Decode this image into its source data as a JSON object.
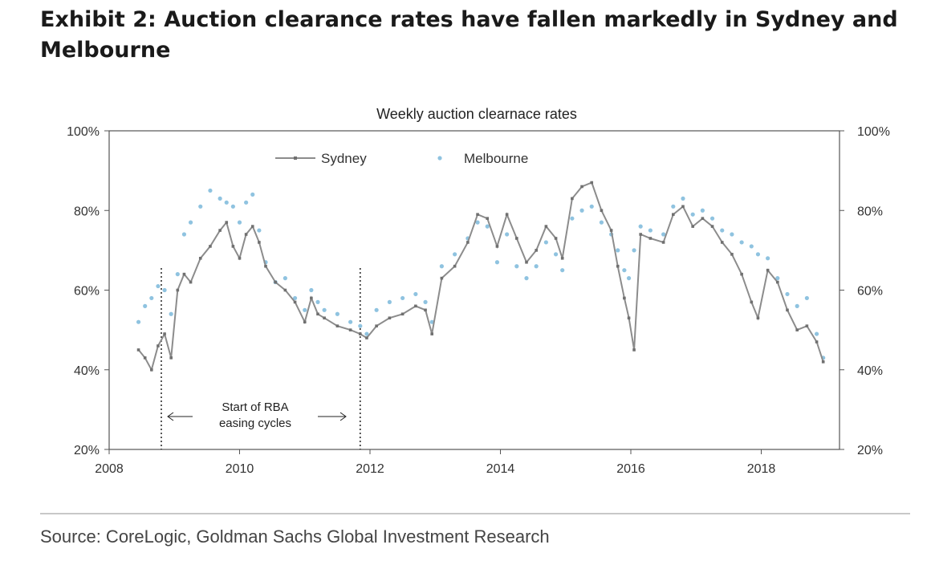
{
  "exhibit": {
    "title": "Exhibit 2: Auction clearance rates have fallen markedly in Sydney and Melbourne",
    "source": "Source: CoreLogic, Goldman Sachs Global Investment Research"
  },
  "chart_data": {
    "type": "line",
    "title": "Weekly auction clearnace rates",
    "xlabel": "",
    "ylabel": "",
    "xlim": [
      2008,
      2019.2
    ],
    "ylim": [
      20,
      100
    ],
    "x_ticks": [
      "2008",
      "2010",
      "2012",
      "2014",
      "2016",
      "2018"
    ],
    "y_ticks_left": [
      "20%",
      "40%",
      "60%",
      "80%",
      "100%"
    ],
    "y_ticks_right": [
      "20%",
      "40%",
      "60%",
      "80%",
      "100%"
    ],
    "grid": false,
    "legend_position": "top-left",
    "colors": {
      "sydney": "#8c8c8c",
      "melbourne": "#8fc3e0",
      "axis": "#555555"
    },
    "annotation": {
      "lines": [
        "Start of RBA",
        "easing cycles"
      ],
      "x": [
        2008.8,
        2011.85
      ]
    },
    "series": [
      {
        "name": "Sydney",
        "style": "line-with-markers",
        "points": [
          [
            2008.45,
            45
          ],
          [
            2008.55,
            43
          ],
          [
            2008.65,
            40
          ],
          [
            2008.75,
            46
          ],
          [
            2008.85,
            49
          ],
          [
            2008.95,
            43
          ],
          [
            2009.05,
            60
          ],
          [
            2009.15,
            64
          ],
          [
            2009.25,
            62
          ],
          [
            2009.4,
            68
          ],
          [
            2009.55,
            71
          ],
          [
            2009.7,
            75
          ],
          [
            2009.8,
            77
          ],
          [
            2009.9,
            71
          ],
          [
            2010.0,
            68
          ],
          [
            2010.1,
            74
          ],
          [
            2010.2,
            76
          ],
          [
            2010.3,
            72
          ],
          [
            2010.4,
            66
          ],
          [
            2010.55,
            62
          ],
          [
            2010.7,
            60
          ],
          [
            2010.85,
            57
          ],
          [
            2011.0,
            52
          ],
          [
            2011.1,
            58
          ],
          [
            2011.2,
            54
          ],
          [
            2011.3,
            53
          ],
          [
            2011.5,
            51
          ],
          [
            2011.7,
            50
          ],
          [
            2011.85,
            49
          ],
          [
            2011.95,
            48
          ],
          [
            2012.1,
            51
          ],
          [
            2012.3,
            53
          ],
          [
            2012.5,
            54
          ],
          [
            2012.7,
            56
          ],
          [
            2012.85,
            55
          ],
          [
            2012.95,
            49
          ],
          [
            2013.1,
            63
          ],
          [
            2013.3,
            66
          ],
          [
            2013.5,
            72
          ],
          [
            2013.65,
            79
          ],
          [
            2013.8,
            78
          ],
          [
            2013.95,
            71
          ],
          [
            2014.1,
            79
          ],
          [
            2014.25,
            73
          ],
          [
            2014.4,
            67
          ],
          [
            2014.55,
            70
          ],
          [
            2014.7,
            76
          ],
          [
            2014.85,
            73
          ],
          [
            2014.95,
            68
          ],
          [
            2015.1,
            83
          ],
          [
            2015.25,
            86
          ],
          [
            2015.4,
            87
          ],
          [
            2015.55,
            80
          ],
          [
            2015.7,
            75
          ],
          [
            2015.8,
            66
          ],
          [
            2015.9,
            58
          ],
          [
            2015.97,
            53
          ],
          [
            2016.05,
            45
          ],
          [
            2016.15,
            74
          ],
          [
            2016.3,
            73
          ],
          [
            2016.5,
            72
          ],
          [
            2016.65,
            79
          ],
          [
            2016.8,
            81
          ],
          [
            2016.95,
            76
          ],
          [
            2017.1,
            78
          ],
          [
            2017.25,
            76
          ],
          [
            2017.4,
            72
          ],
          [
            2017.55,
            69
          ],
          [
            2017.7,
            64
          ],
          [
            2017.85,
            57
          ],
          [
            2017.95,
            53
          ],
          [
            2018.1,
            65
          ],
          [
            2018.25,
            62
          ],
          [
            2018.4,
            55
          ],
          [
            2018.55,
            50
          ],
          [
            2018.7,
            51
          ],
          [
            2018.85,
            47
          ],
          [
            2018.95,
            42
          ]
        ]
      },
      {
        "name": "Melbourne",
        "style": "markers",
        "points": [
          [
            2008.45,
            52
          ],
          [
            2008.55,
            56
          ],
          [
            2008.65,
            58
          ],
          [
            2008.75,
            61
          ],
          [
            2008.85,
            60
          ],
          [
            2008.95,
            54
          ],
          [
            2009.05,
            64
          ],
          [
            2009.15,
            74
          ],
          [
            2009.25,
            77
          ],
          [
            2009.4,
            81
          ],
          [
            2009.55,
            85
          ],
          [
            2009.7,
            83
          ],
          [
            2009.8,
            82
          ],
          [
            2009.9,
            81
          ],
          [
            2010.0,
            77
          ],
          [
            2010.1,
            82
          ],
          [
            2010.2,
            84
          ],
          [
            2010.3,
            75
          ],
          [
            2010.4,
            67
          ],
          [
            2010.55,
            62
          ],
          [
            2010.7,
            63
          ],
          [
            2010.85,
            58
          ],
          [
            2011.0,
            55
          ],
          [
            2011.1,
            60
          ],
          [
            2011.2,
            57
          ],
          [
            2011.3,
            55
          ],
          [
            2011.5,
            54
          ],
          [
            2011.7,
            52
          ],
          [
            2011.85,
            51
          ],
          [
            2011.95,
            49
          ],
          [
            2012.1,
            55
          ],
          [
            2012.3,
            57
          ],
          [
            2012.5,
            58
          ],
          [
            2012.7,
            59
          ],
          [
            2012.85,
            57
          ],
          [
            2012.95,
            52
          ],
          [
            2013.1,
            66
          ],
          [
            2013.3,
            69
          ],
          [
            2013.5,
            73
          ],
          [
            2013.65,
            77
          ],
          [
            2013.8,
            76
          ],
          [
            2013.95,
            67
          ],
          [
            2014.1,
            74
          ],
          [
            2014.25,
            66
          ],
          [
            2014.4,
            63
          ],
          [
            2014.55,
            66
          ],
          [
            2014.7,
            72
          ],
          [
            2014.85,
            69
          ],
          [
            2014.95,
            65
          ],
          [
            2015.1,
            78
          ],
          [
            2015.25,
            80
          ],
          [
            2015.4,
            81
          ],
          [
            2015.55,
            77
          ],
          [
            2015.7,
            74
          ],
          [
            2015.8,
            70
          ],
          [
            2015.9,
            65
          ],
          [
            2015.97,
            63
          ],
          [
            2016.05,
            70
          ],
          [
            2016.15,
            76
          ],
          [
            2016.3,
            75
          ],
          [
            2016.5,
            74
          ],
          [
            2016.65,
            81
          ],
          [
            2016.8,
            83
          ],
          [
            2016.95,
            79
          ],
          [
            2017.1,
            80
          ],
          [
            2017.25,
            78
          ],
          [
            2017.4,
            75
          ],
          [
            2017.55,
            74
          ],
          [
            2017.7,
            72
          ],
          [
            2017.85,
            71
          ],
          [
            2017.95,
            69
          ],
          [
            2018.1,
            68
          ],
          [
            2018.25,
            63
          ],
          [
            2018.4,
            59
          ],
          [
            2018.55,
            56
          ],
          [
            2018.7,
            58
          ],
          [
            2018.85,
            49
          ],
          [
            2018.95,
            43
          ]
        ]
      }
    ]
  }
}
